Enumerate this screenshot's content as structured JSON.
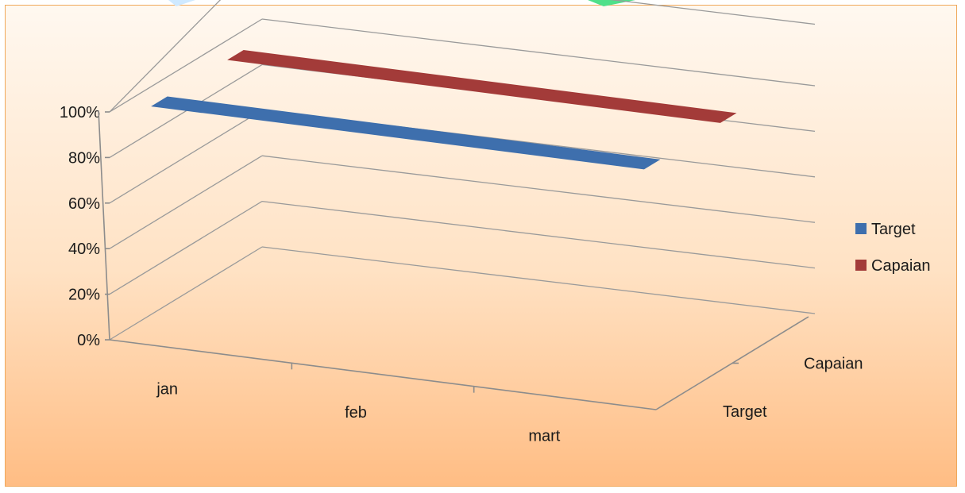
{
  "chart_data": {
    "type": "bar",
    "subtype": "3d-flat-surface",
    "categories": [
      "jan",
      "feb",
      "mart"
    ],
    "depth_categories": [
      "Target",
      "Capaian"
    ],
    "series": [
      {
        "name": "Target",
        "values": [
          1.0,
          1.0,
          1.0
        ],
        "color": "#3e6fad"
      },
      {
        "name": "Capaian",
        "values": [
          1.0,
          1.0,
          1.0
        ],
        "color": "#a33b39"
      }
    ],
    "yticks": [
      "0%",
      "20%",
      "40%",
      "60%",
      "80%",
      "100%"
    ],
    "ylim": [
      0,
      1
    ],
    "grid": true,
    "legend_position": "right"
  },
  "colors": {
    "border": "#f0a85a",
    "accent_green": "#4fe08a"
  }
}
